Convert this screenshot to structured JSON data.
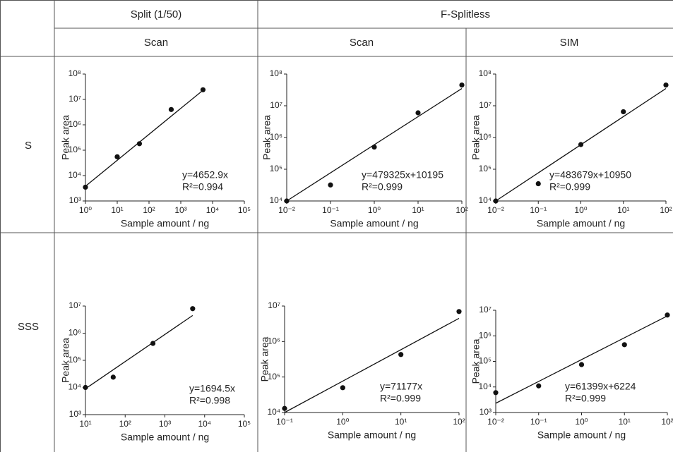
{
  "table": {
    "groups": [
      "Split (1/50)",
      "F-Splitless"
    ],
    "modes": [
      "Scan",
      "Scan",
      "SIM"
    ],
    "rows": [
      "S",
      "SSS"
    ]
  },
  "chart_data": [
    {
      "type": "scatter",
      "xlog": true,
      "ylog": true,
      "x_label": "Sample amount / ng",
      "y_label": "Peak area",
      "xlim": [
        1,
        100000
      ],
      "ylim": [
        1000,
        100000000
      ],
      "xticks": [
        {
          "value": 1,
          "label": "10⁰"
        },
        {
          "value": 10,
          "label": "10¹"
        },
        {
          "value": 100,
          "label": "10²"
        },
        {
          "value": 1000,
          "label": "10³"
        },
        {
          "value": 10000,
          "label": "10⁴"
        },
        {
          "value": 100000,
          "label": "10⁵"
        }
      ],
      "yticks": [
        {
          "value": 1000,
          "label": "10³"
        },
        {
          "value": 10000,
          "label": "10⁴"
        },
        {
          "value": 100000,
          "label": "10⁵"
        },
        {
          "value": 1000000,
          "label": "10⁶"
        },
        {
          "value": 10000000,
          "label": "10⁷"
        },
        {
          "value": 100000000,
          "label": "10⁸"
        }
      ],
      "series": [
        {
          "color": "#111",
          "x": [
            1,
            10,
            50,
            500,
            5000
          ],
          "values": [
            3500,
            55000,
            180000,
            4000000,
            24000000
          ]
        }
      ],
      "fit": {
        "color": "#111",
        "x": [
          1,
          5000
        ],
        "values": [
          3800,
          23000000
        ]
      },
      "annotations": [
        "y=4652.9x",
        "R²=0.994"
      ]
    },
    {
      "type": "scatter",
      "xlog": true,
      "ylog": true,
      "x_label": "Sample amount / ng",
      "y_label": "Peak area",
      "xlim": [
        0.01,
        100
      ],
      "ylim": [
        10000,
        100000000
      ],
      "xticks": [
        {
          "value": 0.01,
          "label": "10⁻²"
        },
        {
          "value": 0.1,
          "label": "10⁻¹"
        },
        {
          "value": 1,
          "label": "10⁰"
        },
        {
          "value": 10,
          "label": "10¹"
        },
        {
          "value": 100,
          "label": "10²"
        }
      ],
      "yticks": [
        {
          "value": 10000,
          "label": "10⁴"
        },
        {
          "value": 100000,
          "label": "10⁵"
        },
        {
          "value": 1000000,
          "label": "10⁶"
        },
        {
          "value": 10000000,
          "label": "10⁷"
        },
        {
          "value": 100000000,
          "label": "10⁸"
        }
      ],
      "series": [
        {
          "color": "#111",
          "x": [
            0.01,
            0.1,
            1,
            10,
            100
          ],
          "values": [
            10000,
            32000,
            500000,
            6000000,
            45000000
          ]
        }
      ],
      "fit": {
        "color": "#111",
        "x": [
          0.01,
          100
        ],
        "values": [
          10000,
          35000000
        ]
      },
      "annotations": [
        "y=479325x+10195",
        "R²=0.999"
      ]
    },
    {
      "type": "scatter",
      "xlog": true,
      "ylog": true,
      "x_label": "Sample amount / ng",
      "y_label": "Peak area",
      "xlim": [
        0.01,
        100
      ],
      "ylim": [
        10000,
        100000000
      ],
      "xticks": [
        {
          "value": 0.01,
          "label": "10⁻²"
        },
        {
          "value": 0.1,
          "label": "10⁻¹"
        },
        {
          "value": 1,
          "label": "10⁰"
        },
        {
          "value": 10,
          "label": "10¹"
        },
        {
          "value": 100,
          "label": "10²"
        }
      ],
      "yticks": [
        {
          "value": 10000,
          "label": "10⁴"
        },
        {
          "value": 100000,
          "label": "10⁵"
        },
        {
          "value": 1000000,
          "label": "10⁶"
        },
        {
          "value": 10000000,
          "label": "10⁷"
        },
        {
          "value": 100000000,
          "label": "10⁸"
        }
      ],
      "series": [
        {
          "color": "#111",
          "x": [
            0.01,
            0.1,
            1,
            10,
            100
          ],
          "values": [
            10000,
            35000,
            600000,
            6500000,
            45000000
          ]
        }
      ],
      "fit": {
        "color": "#111",
        "x": [
          0.01,
          100
        ],
        "values": [
          10000,
          35000000
        ]
      },
      "annotations": [
        "y=483679x+10950",
        "R²=0.999"
      ]
    },
    {
      "type": "scatter",
      "xlog": true,
      "ylog": true,
      "x_label": "Sample amount / ng",
      "y_label": "Peak area",
      "xlim": [
        10,
        100000
      ],
      "ylim": [
        1000,
        10000000
      ],
      "xticks": [
        {
          "value": 10,
          "label": "10¹"
        },
        {
          "value": 100,
          "label": "10²"
        },
        {
          "value": 1000,
          "label": "10³"
        },
        {
          "value": 10000,
          "label": "10⁴"
        },
        {
          "value": 100000,
          "label": "10⁵"
        }
      ],
      "yticks": [
        {
          "value": 1000,
          "label": "10³"
        },
        {
          "value": 10000,
          "label": "10⁴"
        },
        {
          "value": 100000,
          "label": "10⁵"
        },
        {
          "value": 1000000,
          "label": "10⁶"
        },
        {
          "value": 10000000,
          "label": "10⁷"
        }
      ],
      "series": [
        {
          "color": "#111",
          "x": [
            10,
            50,
            500,
            5000
          ],
          "values": [
            10000,
            24000,
            420000,
            8000000
          ]
        }
      ],
      "fit": {
        "color": "#111",
        "x": [
          10,
          5000
        ],
        "values": [
          9000,
          4500000
        ]
      },
      "annotations": [
        "y=1694.5x",
        "R²=0.998"
      ]
    },
    {
      "type": "scatter",
      "xlog": true,
      "ylog": true,
      "x_label": "Sample amount / ng",
      "y_label": "Peak area",
      "xlim": [
        0.1,
        100
      ],
      "ylim": [
        10000,
        10000000
      ],
      "xticks": [
        {
          "value": 0.1,
          "label": "10⁻¹"
        },
        {
          "value": 1,
          "label": "10⁰"
        },
        {
          "value": 10,
          "label": "10¹"
        },
        {
          "value": 100,
          "label": "10²"
        }
      ],
      "yticks": [
        {
          "value": 10000,
          "label": "10⁴"
        },
        {
          "value": 100000,
          "label": "10⁵"
        },
        {
          "value": 1000000,
          "label": "10⁶"
        },
        {
          "value": 10000000,
          "label": "10⁷"
        }
      ],
      "series": [
        {
          "color": "#111",
          "x": [
            0.1,
            1,
            10,
            100
          ],
          "values": [
            13000,
            50000,
            430000,
            7000000
          ]
        }
      ],
      "fit": {
        "color": "#111",
        "x": [
          0.1,
          100
        ],
        "values": [
          10000,
          4500000
        ]
      },
      "annotations": [
        "y=71177x",
        "R²=0.999"
      ]
    },
    {
      "type": "scatter",
      "xlog": true,
      "ylog": true,
      "x_label": "Sample amount / ng",
      "y_label": "Peak area",
      "xlim": [
        0.01,
        100
      ],
      "ylim": [
        1000,
        10000000
      ],
      "xticks": [
        {
          "value": 0.01,
          "label": "10⁻²"
        },
        {
          "value": 0.1,
          "label": "10⁻¹"
        },
        {
          "value": 1,
          "label": "10⁰"
        },
        {
          "value": 10,
          "label": "10¹"
        },
        {
          "value": 100,
          "label": "10²"
        }
      ],
      "yticks": [
        {
          "value": 1000,
          "label": "10³"
        },
        {
          "value": 10000,
          "label": "10⁴"
        },
        {
          "value": 100000,
          "label": "10⁵"
        },
        {
          "value": 1000000,
          "label": "10⁶"
        },
        {
          "value": 10000000,
          "label": "10⁷"
        }
      ],
      "series": [
        {
          "color": "#111",
          "x": [
            0.01,
            0.1,
            1,
            10,
            100
          ],
          "values": [
            6000,
            11000,
            75000,
            450000,
            6500000
          ]
        }
      ],
      "fit": {
        "color": "#111",
        "x": [
          0.01,
          100
        ],
        "values": [
          2300,
          6000000
        ]
      },
      "annotations": [
        "y=61399x+6224",
        "R²=0.999"
      ]
    }
  ]
}
